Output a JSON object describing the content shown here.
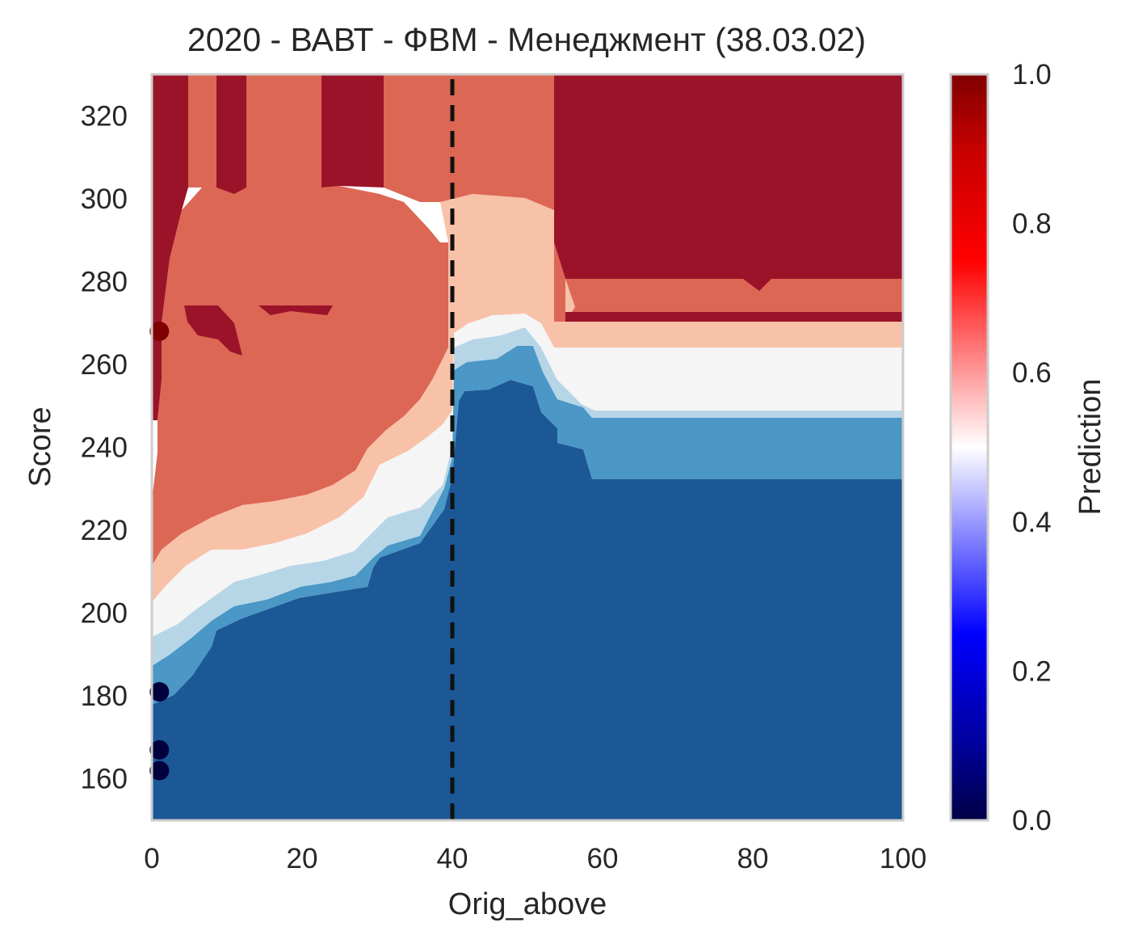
{
  "chart_data": {
    "type": "contour",
    "title": "2020 - ВАВТ - ФВМ - Менеджмент (38.03.02)",
    "xlabel": "Orig_above",
    "ylabel": "Score",
    "xlim": [
      0,
      100
    ],
    "ylim": [
      150,
      330
    ],
    "x_ticks": [
      "0",
      "20",
      "40",
      "60",
      "80",
      "100"
    ],
    "y_ticks": [
      "160",
      "180",
      "200",
      "220",
      "240",
      "260",
      "280",
      "300",
      "320"
    ],
    "grid": false,
    "colorbar": {
      "label": "Prediction",
      "range": [
        0,
        1
      ],
      "ticks": [
        "0.0",
        "0.2",
        "0.4",
        "0.6",
        "0.8",
        "1.0"
      ],
      "colormap": "seismic"
    },
    "vertical_line": {
      "x": 40,
      "style": "dashed",
      "color": "#111111"
    },
    "levels": [
      {
        "range": [
          0.0,
          0.2
        ],
        "color": "#1c5796"
      },
      {
        "range": [
          0.2,
          0.35
        ],
        "color": "#4b97c6"
      },
      {
        "range": [
          0.35,
          0.45
        ],
        "color": "#b6d6e8"
      },
      {
        "range": [
          0.45,
          0.55
        ],
        "color": "#f5f5f5"
      },
      {
        "range": [
          0.55,
          0.65
        ],
        "color": "#f8c2a9"
      },
      {
        "range": [
          0.65,
          0.8
        ],
        "color": "#dc6755"
      },
      {
        "range": [
          0.8,
          1.0
        ],
        "color": "#9b1329"
      }
    ],
    "points": [
      {
        "x": 1,
        "y": 268,
        "value": 1.0
      },
      {
        "x": 1,
        "y": 181,
        "value": 0.0
      },
      {
        "x": 1,
        "y": 167,
        "value": 0.0
      },
      {
        "x": 1,
        "y": 162,
        "value": 0.0
      }
    ]
  }
}
